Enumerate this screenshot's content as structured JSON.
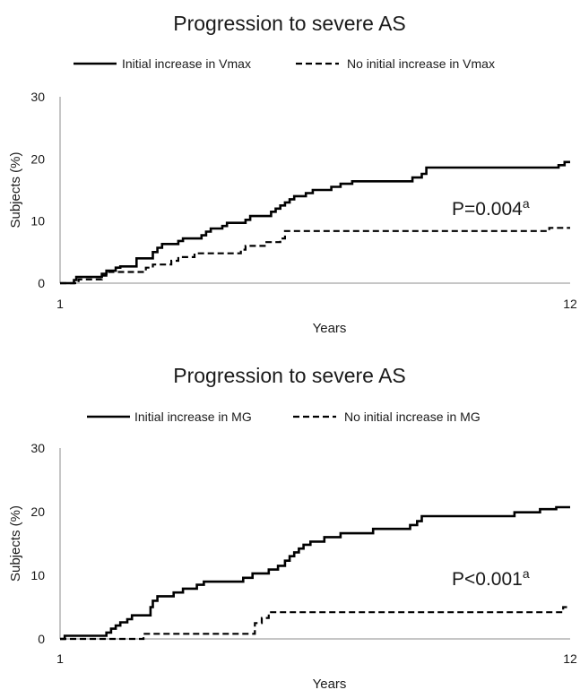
{
  "chart_data": [
    {
      "type": "line",
      "title": "Progression to severe AS",
      "xlabel": "Years",
      "ylabel": "Subjects (%)",
      "xlim": [
        1,
        12
      ],
      "ylim": [
        0,
        30
      ],
      "x_ticks": [
        "1",
        "12"
      ],
      "y_ticks": [
        "0",
        "10",
        "20",
        "30"
      ],
      "legend_position": "top",
      "annotation": {
        "text": "P=0.004",
        "superscript": "a"
      },
      "series": [
        {
          "name": "Initial increase in Vmax",
          "style": "solid",
          "points": [
            [
              1,
              0
            ],
            [
              1.3,
              0
            ],
            [
              1.3,
              0.5
            ],
            [
              1.35,
              0.5
            ],
            [
              1.35,
              1
            ],
            [
              1.9,
              1
            ],
            [
              1.9,
              1.5
            ],
            [
              2.0,
              1.5
            ],
            [
              2.0,
              2
            ],
            [
              2.2,
              2
            ],
            [
              2.2,
              2.5
            ],
            [
              2.3,
              2.5
            ],
            [
              2.3,
              2.7
            ],
            [
              2.65,
              2.7
            ],
            [
              2.65,
              4
            ],
            [
              3.0,
              4
            ],
            [
              3.0,
              5
            ],
            [
              3.1,
              5
            ],
            [
              3.1,
              5.7
            ],
            [
              3.2,
              5.7
            ],
            [
              3.2,
              6.3
            ],
            [
              3.55,
              6.3
            ],
            [
              3.55,
              6.8
            ],
            [
              3.65,
              6.8
            ],
            [
              3.65,
              7.2
            ],
            [
              4.05,
              7.2
            ],
            [
              4.05,
              7.7
            ],
            [
              4.15,
              7.7
            ],
            [
              4.15,
              8.3
            ],
            [
              4.25,
              8.3
            ],
            [
              4.25,
              8.8
            ],
            [
              4.5,
              8.8
            ],
            [
              4.5,
              9.2
            ],
            [
              4.6,
              9.2
            ],
            [
              4.6,
              9.7
            ],
            [
              5.0,
              9.7
            ],
            [
              5.0,
              10.2
            ],
            [
              5.1,
              10.2
            ],
            [
              5.1,
              10.8
            ],
            [
              5.55,
              10.8
            ],
            [
              5.55,
              11.5
            ],
            [
              5.65,
              11.5
            ],
            [
              5.65,
              12
            ],
            [
              5.75,
              12
            ],
            [
              5.75,
              12.5
            ],
            [
              5.85,
              12.5
            ],
            [
              5.85,
              13
            ],
            [
              5.95,
              13
            ],
            [
              5.95,
              13.5
            ],
            [
              6.05,
              13.5
            ],
            [
              6.05,
              14
            ],
            [
              6.3,
              14
            ],
            [
              6.3,
              14.5
            ],
            [
              6.45,
              14.5
            ],
            [
              6.45,
              15
            ],
            [
              6.85,
              15
            ],
            [
              6.85,
              15.5
            ],
            [
              7.05,
              15.5
            ],
            [
              7.05,
              16
            ],
            [
              7.3,
              16
            ],
            [
              7.3,
              16.4
            ],
            [
              8.6,
              16.4
            ],
            [
              8.6,
              17
            ],
            [
              8.8,
              17
            ],
            [
              8.8,
              17.6
            ],
            [
              8.9,
              17.6
            ],
            [
              8.9,
              18.6
            ],
            [
              11.75,
              18.6
            ],
            [
              11.75,
              19
            ],
            [
              11.88,
              19
            ],
            [
              11.88,
              19.5
            ],
            [
              12,
              19.5
            ]
          ]
        },
        {
          "name": "No initial increase in Vmax",
          "style": "dashed",
          "points": [
            [
              1,
              0
            ],
            [
              1.4,
              0
            ],
            [
              1.4,
              0.6
            ],
            [
              1.9,
              0.6
            ],
            [
              1.9,
              1.2
            ],
            [
              2.0,
              1.2
            ],
            [
              2.0,
              1.8
            ],
            [
              2.85,
              1.8
            ],
            [
              2.85,
              2.5
            ],
            [
              3.0,
              2.5
            ],
            [
              3.0,
              3
            ],
            [
              3.4,
              3
            ],
            [
              3.4,
              3.6
            ],
            [
              3.55,
              3.6
            ],
            [
              3.55,
              4.2
            ],
            [
              3.9,
              4.2
            ],
            [
              3.9,
              4.8
            ],
            [
              4.9,
              4.8
            ],
            [
              4.9,
              5.4
            ],
            [
              5.0,
              5.4
            ],
            [
              5.0,
              6
            ],
            [
              5.45,
              6
            ],
            [
              5.45,
              6.6
            ],
            [
              5.75,
              6.6
            ],
            [
              5.75,
              7.2
            ],
            [
              5.85,
              7.2
            ],
            [
              5.85,
              8.4
            ],
            [
              11.55,
              8.4
            ],
            [
              11.55,
              8.9
            ],
            [
              12,
              8.9
            ]
          ]
        }
      ]
    },
    {
      "type": "line",
      "title": "Progression to severe AS",
      "xlabel": "Years",
      "ylabel": "Subjects (%)",
      "xlim": [
        1,
        12
      ],
      "ylim": [
        0,
        30
      ],
      "x_ticks": [
        "1",
        "12"
      ],
      "y_ticks": [
        "0",
        "10",
        "20",
        "30"
      ],
      "legend_position": "top",
      "annotation": {
        "text": "P<0.001",
        "superscript": "a"
      },
      "series": [
        {
          "name": "Initial increase in MG",
          "style": "solid",
          "points": [
            [
              1,
              0
            ],
            [
              1.1,
              0
            ],
            [
              1.1,
              0.5
            ],
            [
              2.0,
              0.5
            ],
            [
              2.0,
              1
            ],
            [
              2.1,
              1
            ],
            [
              2.1,
              1.6
            ],
            [
              2.2,
              1.6
            ],
            [
              2.2,
              2.1
            ],
            [
              2.3,
              2.1
            ],
            [
              2.3,
              2.6
            ],
            [
              2.45,
              2.6
            ],
            [
              2.45,
              3.1
            ],
            [
              2.55,
              3.1
            ],
            [
              2.55,
              3.7
            ],
            [
              2.95,
              3.7
            ],
            [
              2.95,
              5
            ],
            [
              3.0,
              5
            ],
            [
              3.0,
              6
            ],
            [
              3.1,
              6
            ],
            [
              3.1,
              6.7
            ],
            [
              3.45,
              6.7
            ],
            [
              3.45,
              7.3
            ],
            [
              3.65,
              7.3
            ],
            [
              3.65,
              7.9
            ],
            [
              3.95,
              7.9
            ],
            [
              3.95,
              8.5
            ],
            [
              4.1,
              8.5
            ],
            [
              4.1,
              9
            ],
            [
              4.95,
              9
            ],
            [
              4.95,
              9.6
            ],
            [
              5.15,
              9.6
            ],
            [
              5.15,
              10.3
            ],
            [
              5.5,
              10.3
            ],
            [
              5.5,
              10.9
            ],
            [
              5.7,
              10.9
            ],
            [
              5.7,
              11.5
            ],
            [
              5.85,
              11.5
            ],
            [
              5.85,
              12.3
            ],
            [
              5.95,
              12.3
            ],
            [
              5.95,
              13
            ],
            [
              6.05,
              13
            ],
            [
              6.05,
              13.6
            ],
            [
              6.15,
              13.6
            ],
            [
              6.15,
              14.2
            ],
            [
              6.25,
              14.2
            ],
            [
              6.25,
              14.8
            ],
            [
              6.4,
              14.8
            ],
            [
              6.4,
              15.3
            ],
            [
              6.7,
              15.3
            ],
            [
              6.7,
              16
            ],
            [
              7.05,
              16
            ],
            [
              7.05,
              16.6
            ],
            [
              7.75,
              16.6
            ],
            [
              7.75,
              17.3
            ],
            [
              8.55,
              17.3
            ],
            [
              8.55,
              17.9
            ],
            [
              8.7,
              17.9
            ],
            [
              8.7,
              18.5
            ],
            [
              8.8,
              18.5
            ],
            [
              8.8,
              19.3
            ],
            [
              10.8,
              19.3
            ],
            [
              10.8,
              19.9
            ],
            [
              11.35,
              19.9
            ],
            [
              11.35,
              20.4
            ],
            [
              11.7,
              20.4
            ],
            [
              11.7,
              20.7
            ],
            [
              12,
              20.7
            ]
          ]
        },
        {
          "name": "No initial increase in MG",
          "style": "dashed",
          "points": [
            [
              1,
              0
            ],
            [
              2.8,
              0
            ],
            [
              2.8,
              0.8
            ],
            [
              5.2,
              0.8
            ],
            [
              5.2,
              2.5
            ],
            [
              5.35,
              2.5
            ],
            [
              5.35,
              3.3
            ],
            [
              5.5,
              3.3
            ],
            [
              5.5,
              4.2
            ],
            [
              11.85,
              4.2
            ],
            [
              11.85,
              5
            ],
            [
              12,
              5
            ]
          ]
        }
      ]
    }
  ]
}
